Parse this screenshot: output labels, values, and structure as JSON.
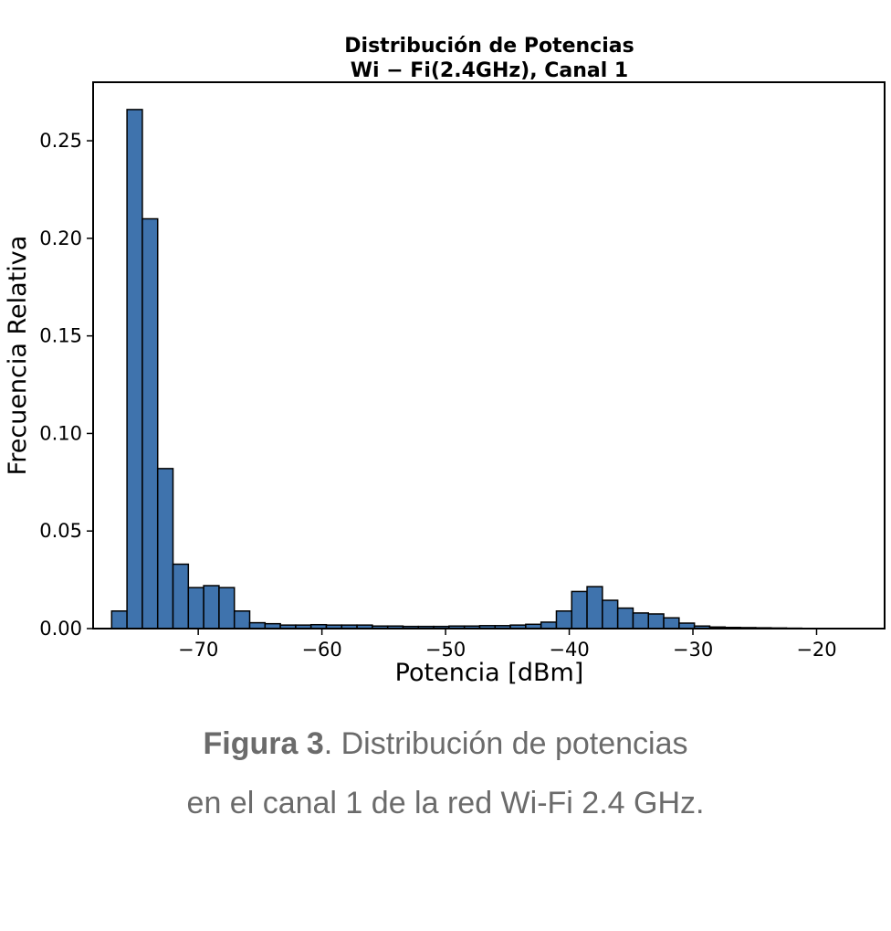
{
  "chart_data": {
    "type": "bar",
    "title_line1": "Distribución de Potencias",
    "title_line2": "Wi − Fi(2.4GHz),  Canal 1",
    "xlabel": "Potencia [dBm]",
    "ylabel": "Frecuencia Relativa",
    "xlim": [
      -78.5,
      -14.5
    ],
    "ylim": [
      0,
      0.28
    ],
    "xticks": [
      -70,
      -60,
      -50,
      -40,
      -30,
      -20
    ],
    "xtick_labels": [
      "−70",
      "−60",
      "−50",
      "−40",
      "−30",
      "−20"
    ],
    "yticks": [
      0,
      0.05,
      0.1,
      0.15,
      0.2,
      0.25
    ],
    "ytick_labels": [
      "0.00",
      "0.05",
      "0.10",
      "0.15",
      "0.20",
      "0.25"
    ],
    "bar_color": "#3f73ad",
    "edge_color": "#000000",
    "bin_start": -77.0,
    "bin_width": 1.24,
    "values": [
      0.009,
      0.266,
      0.21,
      0.082,
      0.033,
      0.021,
      0.022,
      0.021,
      0.009,
      0.003,
      0.0025,
      0.0018,
      0.0018,
      0.002,
      0.0018,
      0.0018,
      0.0018,
      0.0013,
      0.0013,
      0.0011,
      0.0011,
      0.0011,
      0.0013,
      0.0013,
      0.0015,
      0.0015,
      0.0018,
      0.0022,
      0.0033,
      0.009,
      0.019,
      0.0215,
      0.0145,
      0.0105,
      0.008,
      0.0075,
      0.0055,
      0.0028,
      0.0013,
      0.0008,
      0.0006,
      0.0005,
      0.0004,
      0.0003,
      0.0002,
      0.0001,
      0.0001,
      0.0001,
      0.0001,
      0.0001
    ],
    "grid": false
  },
  "caption": {
    "label": "Figura 3",
    "line1_rest": ". Distribución de potencias",
    "line2": "en el canal 1 de la red Wi-Fi 2.4 GHz."
  }
}
